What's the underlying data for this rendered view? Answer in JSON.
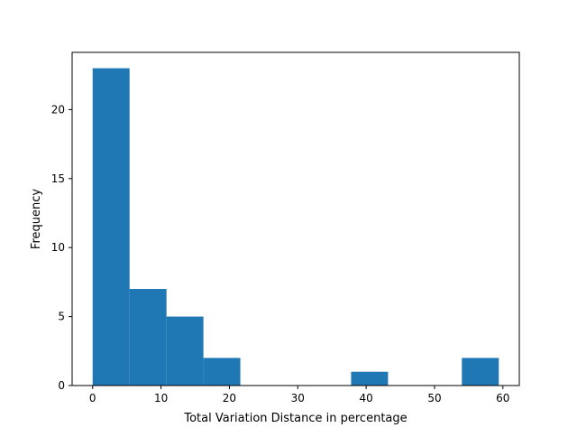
{
  "chart_data": {
    "type": "bar",
    "title": "",
    "xlabel": "Total Variation Distance in percentage",
    "ylabel": "Frequency",
    "xlim": [
      -3,
      62.4
    ],
    "ylim": [
      0,
      24.15
    ],
    "xticks": [
      0,
      10,
      20,
      30,
      40,
      50,
      60
    ],
    "yticks": [
      0,
      5,
      10,
      15,
      20
    ],
    "bins": [
      {
        "start": 0.0,
        "end": 5.4,
        "count": 23
      },
      {
        "start": 5.4,
        "end": 10.8,
        "count": 7
      },
      {
        "start": 10.8,
        "end": 16.2,
        "count": 5
      },
      {
        "start": 16.2,
        "end": 21.6,
        "count": 2
      },
      {
        "start": 21.6,
        "end": 27.0,
        "count": 0
      },
      {
        "start": 27.0,
        "end": 32.4,
        "count": 0
      },
      {
        "start": 32.4,
        "end": 37.8,
        "count": 0
      },
      {
        "start": 37.8,
        "end": 43.2,
        "count": 1
      },
      {
        "start": 43.2,
        "end": 48.6,
        "count": 0
      },
      {
        "start": 48.6,
        "end": 54.0,
        "count": 0
      },
      {
        "start": 54.0,
        "end": 59.4,
        "count": 2
      }
    ],
    "grid": false,
    "legend": "none",
    "bar_color": "#1f77b4"
  }
}
